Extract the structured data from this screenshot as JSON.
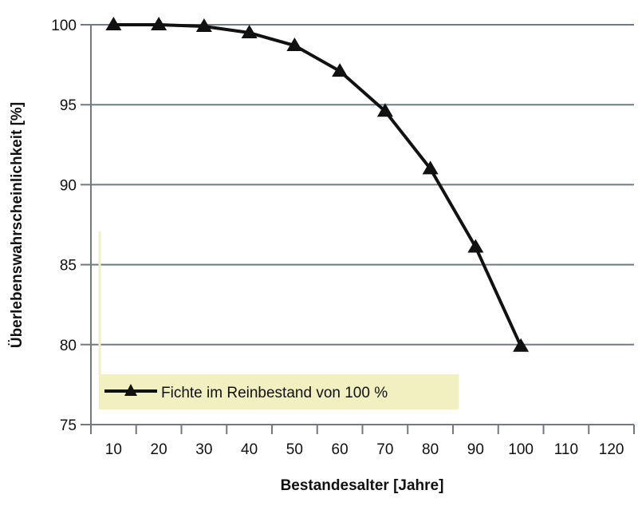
{
  "chart_data": {
    "type": "line",
    "title": "",
    "xlabel": "Bestandesalter [Jahre]",
    "ylabel": "Überlebenswahrscheinlichkeit [%]",
    "categories": [
      "10",
      "20",
      "30",
      "40",
      "50",
      "60",
      "70",
      "80",
      "90",
      "100",
      "110",
      "120"
    ],
    "yticks": [
      "75",
      "80",
      "85",
      "90",
      "95",
      "100"
    ],
    "ylim": [
      75,
      100
    ],
    "grid": "horizontal",
    "legend_placement": "bottom-left",
    "series": [
      {
        "name": "Fichte im Reinbestand von 100 %",
        "marker": "triangle",
        "color": "#111111",
        "x": [
          10,
          20,
          30,
          40,
          50,
          60,
          70,
          80,
          90,
          100
        ],
        "values": [
          100,
          100,
          99.9,
          99.5,
          98.7,
          97.1,
          94.6,
          91.0,
          86.1,
          79.9
        ]
      }
    ],
    "colors": {
      "grid": "#6e7b80",
      "legend_bg": "#f0f0c0",
      "line": "#111111"
    }
  }
}
